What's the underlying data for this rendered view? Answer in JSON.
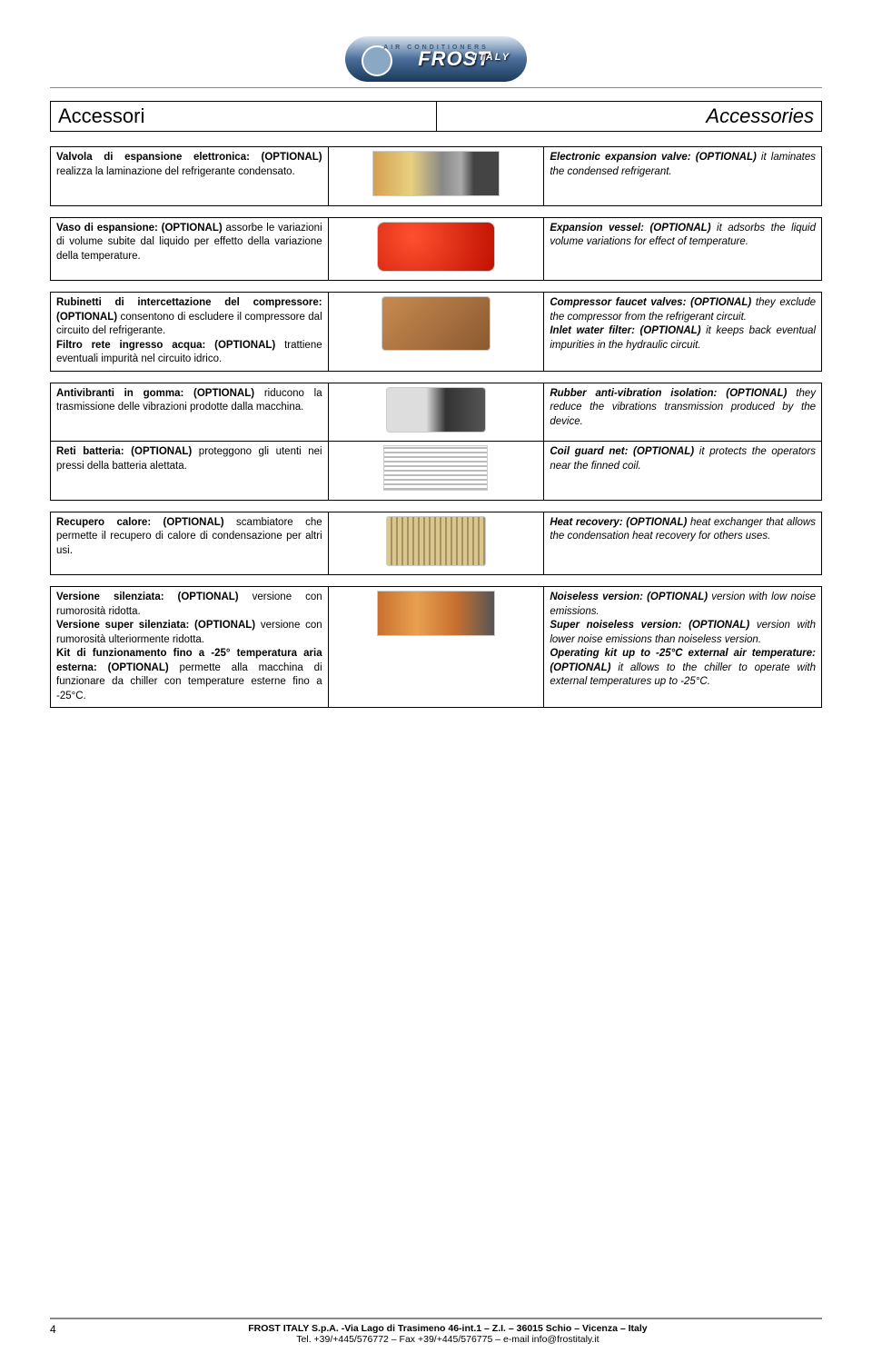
{
  "logo": {
    "top": "AIR CONDITIONERS",
    "main": "FROST",
    "sub": "ITALY"
  },
  "title": {
    "left": "Accessori",
    "right": "Accessories"
  },
  "rows": [
    {
      "it": "<b>Valvola di espansione elettronica: (OPTIONAL)</b> realizza la laminazione del refrigerante condensato.",
      "en": "<b>Electronic expansion valve: (OPTIONAL)</b> it laminates the condensed refrigerant.",
      "img": "img-valve"
    },
    {
      "it": "<b>Vaso di espansione: (OPTIONAL)</b> assorbe le variazioni di volume subite dal liquido per effetto della variazione della temperature.",
      "en": "<b>Expansion vessel: (OPTIONAL)</b> it adsorbs the liquid volume variations for effect of temperature.",
      "img": "img-vessel"
    },
    {
      "it": "<b>Rubinetti di intercettazione del compressore: (OPTIONAL)</b> consentono di escludere il compressore dal circuito del refrigerante.<br><b>Filtro rete ingresso acqua: (OPTIONAL)</b> trattiene eventuali impurità nel circuito idrico.",
      "en": "<b>Compressor faucet valves: (OPTIONAL)</b> they exclude the compressor from the refrigerant circuit.<br><b>Inlet water filter: (OPTIONAL)</b> it keeps back eventual impurities in the hydraulic circuit.",
      "img": "img-faucet"
    },
    {
      "it": "<b>Antivibranti in gomma: (OPTIONAL)</b> riducono la trasmissione delle vibrazioni prodotte dalla macchina.",
      "en": "<b>Rubber anti-vibration isolation: (OPTIONAL)</b> they reduce the vibrations transmission produced by the device.",
      "img": "img-antivib"
    },
    {
      "it": "<b>Reti batteria: (OPTIONAL)</b> proteggono gli utenti nei pressi della batteria alettata.",
      "en": "<b>Coil guard net: (OPTIONAL)</b> it protects the operators near the finned coil.",
      "img": "img-grid"
    },
    {
      "it": "<b>Recupero calore: (OPTIONAL)</b> scambiatore che permette il recupero di calore di condensazione per altri usi.",
      "en": "<b>Heat recovery: (OPTIONAL)</b> heat exchanger that allows the condensation heat recovery for others uses.",
      "img": "img-heatex"
    },
    {
      "it": "<b>Versione silenziata: (OPTIONAL)</b> versione con rumorosità ridotta.<br><b>Versione super silenziata: (OPTIONAL)</b> versione con rumorosità ulteriormente ridotta.<br><b>Kit di funzionamento fino a -25° temperatura aria esterna: (OPTIONAL)</b> permette alla macchina di funzionare da chiller con temperature esterne fino a -25°C.",
      "en": "<b>Noiseless version: (OPTIONAL)</b> version with low noise emissions.<br><b>Super noiseless version: (OPTIONAL)</b> version with lower noise emissions than noiseless version.<br><b>Operating kit up to -25°C external air temperature: (OPTIONAL)</b> it allows to the chiller to operate with external temperatures up to -25°C.",
      "img": "img-kit"
    }
  ],
  "row_groups": [
    [
      0
    ],
    [
      1
    ],
    [
      2
    ],
    [
      3,
      4
    ],
    [
      5
    ],
    [
      6
    ]
  ],
  "footer": {
    "page": "4",
    "line1": "FROST ITALY S.p.A. -Via Lago di Trasimeno 46-int.1 – Z.I. – 36015 Schio – Vicenza – Italy",
    "line2": "Tel. +39/+445/576772 – Fax +39/+445/576775 – e-mail info@frostitaly.it"
  }
}
